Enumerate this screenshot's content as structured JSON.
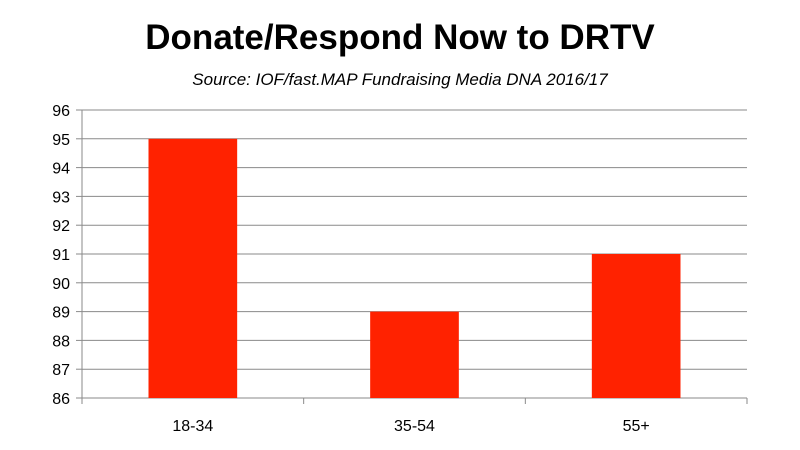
{
  "chart": {
    "title": "Donate/Respond Now to DRTV",
    "subtitle": "Source: IOF/fast.MAP Fundraising Media DNA 2016/17"
  },
  "colors": {
    "bar": "#ff2200",
    "grid": "#8a8a8a",
    "axis": "#8a8a8a"
  },
  "chart_data": {
    "type": "bar",
    "title": "Donate/Respond Now to DRTV",
    "subtitle": "Source: IOF/fast.MAP Fundraising Media DNA 2016/17",
    "categories": [
      "18-34",
      "35-54",
      "55+"
    ],
    "values": [
      95,
      89,
      91
    ],
    "xlabel": "",
    "ylabel": "",
    "ylim": [
      86,
      96
    ],
    "yticks": [
      86,
      87,
      88,
      89,
      90,
      91,
      92,
      93,
      94,
      95,
      96
    ],
    "grid": true,
    "legend": "none"
  }
}
